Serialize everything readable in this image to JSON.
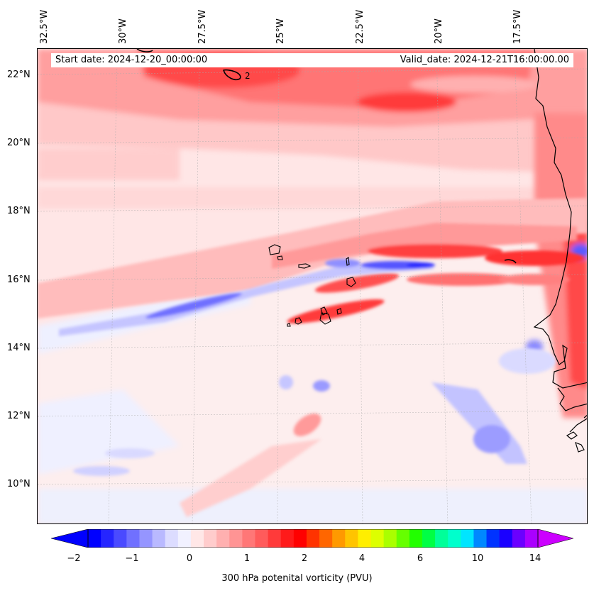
{
  "map": {
    "header": {
      "start_date": "Start date: 2024-12-20_00:00:00",
      "valid_date": "Valid_date: 2024-12-21T16:00:00.00"
    },
    "longitude_labels": [
      "32.5°W",
      "30°W",
      "27.5°W",
      "25°W",
      "22.5°W",
      "20°W",
      "17.5°W"
    ],
    "latitude_labels": [
      "22°N",
      "20°N",
      "18°N",
      "16°N",
      "14°N",
      "12°N",
      "10°N"
    ],
    "contour_label": "2",
    "colorbar": {
      "label": "300 hPa potenital vorticity (PVU)",
      "ticks": [
        "−2",
        "−1",
        "0",
        "1",
        "2",
        "4",
        "6",
        "10",
        "14"
      ],
      "colors": [
        "#0000ff",
        "#2525ff",
        "#4a4aff",
        "#7070ff",
        "#9595ff",
        "#b9b9ff",
        "#dcdcff",
        "#f1f1ff",
        "#ffe7e7",
        "#ffcccc",
        "#ffb0b0",
        "#ff9494",
        "#ff7777",
        "#ff5b5b",
        "#ff3a3a",
        "#ff1a1a",
        "#ff0000",
        "#ff3300",
        "#ff6600",
        "#ff9900",
        "#ffc400",
        "#ffee00",
        "#ddff00",
        "#aaff00",
        "#66ff00",
        "#22ff00",
        "#00ff44",
        "#00ff99",
        "#00ffcc",
        "#00e5ff",
        "#0088ff",
        "#0033ff",
        "#1a00ff",
        "#6a00ff",
        "#aa00ff"
      ]
    }
  }
}
